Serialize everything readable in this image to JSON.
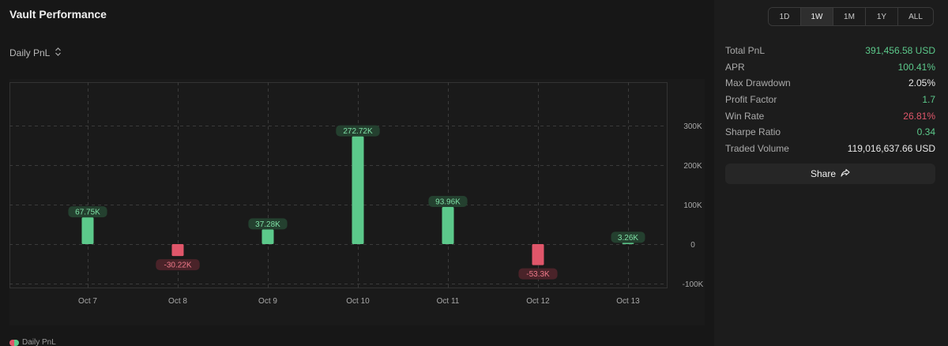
{
  "header": {
    "title": "Vault Performance"
  },
  "metric_selector": {
    "label": "Daily PnL"
  },
  "range_tabs": [
    {
      "label": "1D",
      "active": false
    },
    {
      "label": "1W",
      "active": true
    },
    {
      "label": "1M",
      "active": false
    },
    {
      "label": "1Y",
      "active": false
    },
    {
      "label": "ALL",
      "active": false
    }
  ],
  "stats": [
    {
      "label": "Total PnL",
      "value": "391,456.58 USD",
      "tone": "pos"
    },
    {
      "label": "APR",
      "value": "100.41%",
      "tone": "pos"
    },
    {
      "label": "Max Drawdown",
      "value": "2.05%",
      "tone": "neutral"
    },
    {
      "label": "Profit Factor",
      "value": "1.7",
      "tone": "pos"
    },
    {
      "label": "Win Rate",
      "value": "26.81%",
      "tone": "neg"
    },
    {
      "label": "Sharpe Ratio",
      "value": "0.34",
      "tone": "pos"
    },
    {
      "label": "Traded Volume",
      "value": "119,016,637.66 USD",
      "tone": "neutral"
    }
  ],
  "share": {
    "label": "Share",
    "icon": "share-arrow-icon"
  },
  "colors": {
    "positive": "#5cc98b",
    "negative": "#e0566a"
  },
  "chart_data": {
    "type": "bar",
    "categories": [
      "Oct 7",
      "Oct 8",
      "Oct 9",
      "Oct 10",
      "Oct 11",
      "Oct 12",
      "Oct 13"
    ],
    "values": [
      67750,
      -30220,
      37280,
      272720,
      93960,
      -53300,
      3260
    ],
    "data_labels": [
      "67.75K",
      "-30.22K",
      "37.28K",
      "272.72K",
      "93.96K",
      "-53.3K",
      "3.26K"
    ],
    "yticks": [
      300000,
      200000,
      100000,
      0,
      -100000
    ],
    "ytick_labels": [
      "300K",
      "200K",
      "100K",
      "0",
      "-100K"
    ],
    "ylim": [
      -110000,
      410000
    ],
    "grid": true,
    "legend": {
      "position": "bottom-left",
      "label": "Daily PnL"
    }
  }
}
